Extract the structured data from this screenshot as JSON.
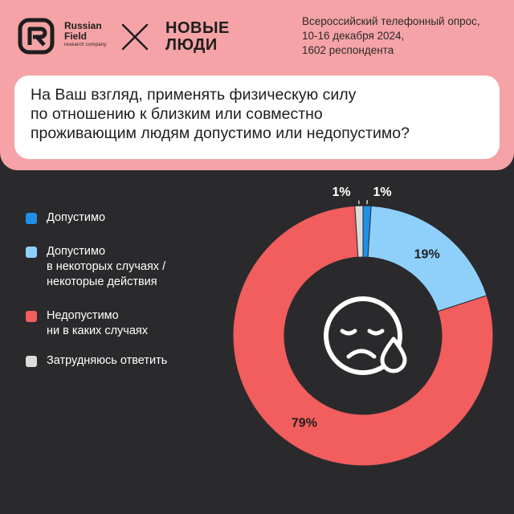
{
  "header": {
    "brand_left": {
      "line1": "Russian",
      "line2": "Field",
      "tagline": "research company"
    },
    "brand_right": {
      "line1": "НОВЫЕ",
      "line2": "ЛЮДИ"
    },
    "survey_info": [
      "Всероссийский телефонный опрос,",
      "10-16 декабря 2024,",
      "1602 респондента"
    ]
  },
  "question": {
    "lines": [
      "На Ваш взгляд, применять физическую силу",
      "по отношению к близким или совместно",
      "проживающим людям допустимо или недопустимо?"
    ]
  },
  "colors": {
    "header_bg": "#f5a3a6",
    "background": "#2a2a2d",
    "acceptable": "#1e90e8",
    "sometimes": "#8fd0fb",
    "unacceptable": "#f25d5d",
    "dont_know": "#dcdcdc"
  },
  "chart_data": {
    "type": "pie",
    "style": "donut",
    "center_icon": "sad-face-tear-icon",
    "legend_position": "left",
    "slices": [
      {
        "label": "Допустимо",
        "value": 1,
        "display": "1%",
        "color": "#1e90e8"
      },
      {
        "label": "Допустимо\nв некоторых случаях /\nнекоторые действия",
        "value": 19,
        "display": "19%",
        "color": "#8fd0fb"
      },
      {
        "label": "Недопустимо\nни в каких случаях",
        "value": 79,
        "display": "79%",
        "color": "#f25d5d"
      },
      {
        "label": "Затрудняюсь ответить",
        "value": 1,
        "display": "1%",
        "color": "#dcdcdc"
      }
    ]
  }
}
